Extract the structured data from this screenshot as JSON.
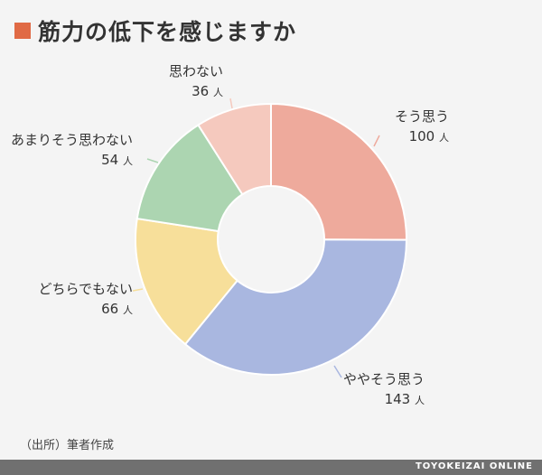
{
  "title": "筋力の低下を感じますか",
  "source": "（出所）筆者作成",
  "brand": "TOYOKEIZAI ONLINE",
  "colors": {
    "title_marker": "#e06a45",
    "footer": "#707070"
  },
  "chart_data": {
    "type": "pie",
    "style": "donut",
    "title": "筋力の低下を感じますか",
    "unit": "人",
    "slices": [
      {
        "label": "そう思う",
        "value": 100,
        "color": "#eeaa9c"
      },
      {
        "label": "ややそう思う",
        "value": 143,
        "color": "#a9b7e0"
      },
      {
        "label": "どちらでもない",
        "value": 66,
        "color": "#f7df9a"
      },
      {
        "label": "あまりそう思わない",
        "value": 54,
        "color": "#acd5b1"
      },
      {
        "label": "思わない",
        "value": 36,
        "color": "#f5c9be"
      }
    ]
  }
}
